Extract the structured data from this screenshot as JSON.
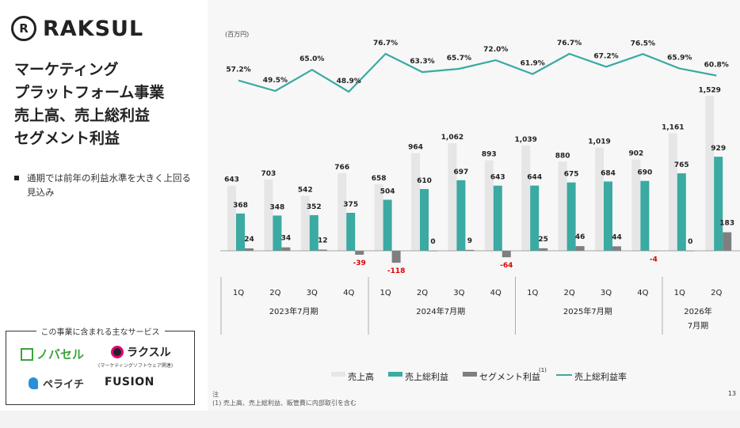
{
  "logo": {
    "mark": "R",
    "name": "RAKSUL"
  },
  "heading": [
    "マーケティング",
    "プラットフォーム事業",
    "売上高、売上総利益",
    "セグメント利益"
  ],
  "bullet": "通期では前年の利益水準を大きく上回る見込み",
  "services": {
    "title": "この事業に含まれる主なサービス",
    "items": [
      "ノバセル",
      "ラクスル",
      "(マーケティングソフトウェア関連)",
      "ペライチ",
      "FUSION"
    ]
  },
  "note": {
    "label": "注",
    "text": "(1) 売上高、売上総利益、販管費に内部取引を含む"
  },
  "page_number": "13",
  "colors": {
    "sales": "#e6e6e6",
    "gross": "#3aaaa2",
    "segment": "#7f7f7f",
    "margin": "#3aaaa2",
    "negative": "#e00000"
  },
  "chart_data": {
    "type": "bar",
    "unit": "(百万円)",
    "categories": [
      "1Q",
      "2Q",
      "3Q",
      "4Q",
      "1Q",
      "2Q",
      "3Q",
      "4Q",
      "1Q",
      "2Q",
      "3Q",
      "4Q",
      "1Q",
      "2Q"
    ],
    "groups": [
      {
        "label": "2023年7月期",
        "count": 4
      },
      {
        "label": "2024年7月期",
        "count": 4
      },
      {
        "label": "2025年7月期",
        "count": 4
      },
      {
        "label": "2026年7月期",
        "count": 2
      }
    ],
    "series": [
      {
        "name": "売上高",
        "type": "bar",
        "values": [
          643,
          703,
          542,
          766,
          658,
          964,
          1062,
          893,
          1039,
          880,
          1019,
          902,
          1161,
          1529
        ]
      },
      {
        "name": "売上総利益",
        "type": "bar",
        "values": [
          368,
          348,
          352,
          375,
          504,
          610,
          697,
          643,
          644,
          675,
          684,
          690,
          765,
          929
        ]
      },
      {
        "name": "セグメント利益",
        "type": "bar",
        "values": [
          24,
          34,
          12,
          -39,
          -118,
          0,
          9,
          -64,
          25,
          46,
          44,
          -4,
          0,
          183
        ]
      },
      {
        "name": "売上総利益率",
        "type": "line",
        "values": [
          57.2,
          49.5,
          65.0,
          48.9,
          76.7,
          63.3,
          65.7,
          72.0,
          61.9,
          76.7,
          67.2,
          76.5,
          65.9,
          60.8
        ]
      }
    ],
    "legend_note": "(1)",
    "legend_position": "bottom"
  }
}
